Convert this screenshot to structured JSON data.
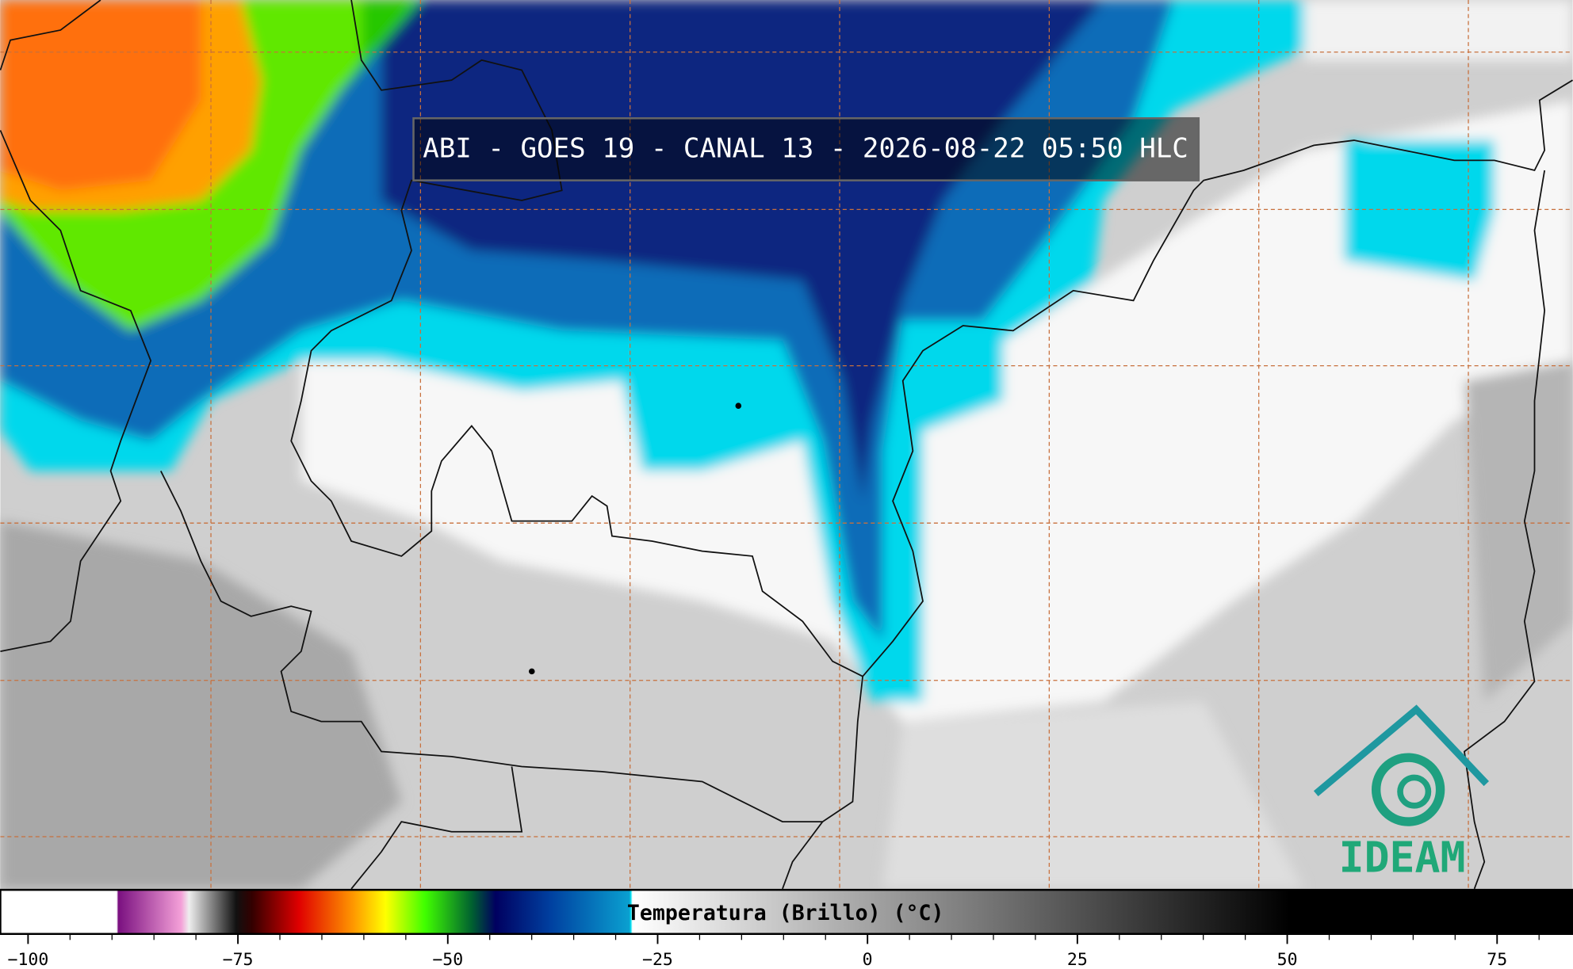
{
  "title": "ABI - GOES 19 - CANAL 13 - 2026-08-22 05:50 HLC",
  "colorbar": {
    "label": "Temperatura (Brillo) (°C)",
    "range": [
      -103.3,
      84
    ],
    "ticks": [
      {
        "value": -100,
        "label": "−100"
      },
      {
        "value": -75,
        "label": "−75"
      },
      {
        "value": -50,
        "label": "−50"
      },
      {
        "value": -25,
        "label": "−25"
      },
      0,
      25,
      50,
      75
    ],
    "minor_ticks": [
      -95,
      -90,
      -85,
      -80,
      -70,
      -65,
      -60,
      -55,
      -45,
      -40,
      -35,
      -30,
      -20,
      -15,
      -10,
      -5,
      5,
      10,
      15,
      20,
      30,
      35,
      40,
      45,
      55,
      60,
      65,
      70,
      80
    ]
  },
  "logo": "IDEAM"
}
